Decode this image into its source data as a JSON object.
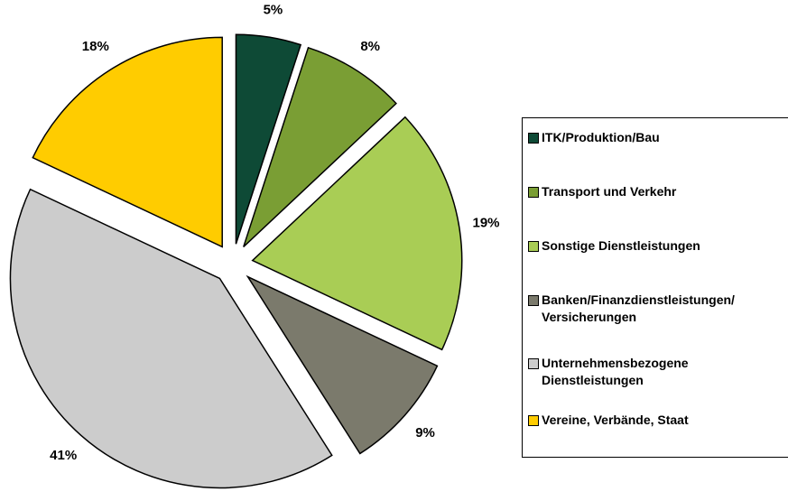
{
  "chart_data": {
    "type": "pie",
    "categories": [
      "ITK/Produktion/Bau",
      "Transport und Verkehr",
      "Sonstige Dienstleistungen",
      "Banken/Finanzdienstleistungen/ Versicherungen",
      "Unternehmensbezogene Dienstleistungen",
      "Vereine, Verbände, Staat"
    ],
    "values": [
      5,
      8,
      19,
      9,
      41,
      18
    ],
    "value_labels": [
      "5%",
      "8%",
      "19%",
      "9%",
      "41%",
      "18%"
    ],
    "colors": [
      "#0e4a36",
      "#7a9e34",
      "#a9cd55",
      "#7b7a6c",
      "#cccccc",
      "#ffcc00"
    ],
    "legend": "right"
  }
}
